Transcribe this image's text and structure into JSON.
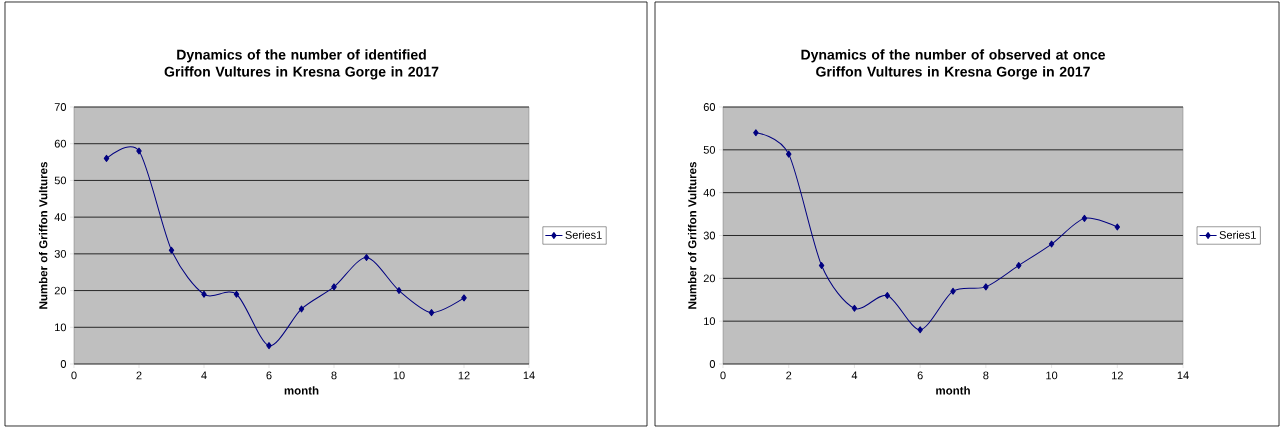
{
  "chart_data": [
    {
      "type": "line",
      "title": "Dynamics of the number of identified Griffon Vultures in Kresna Gorge in 2017",
      "xlabel": "month",
      "ylabel": "Number of Griffon Vultures",
      "x": [
        1,
        2,
        3,
        4,
        5,
        6,
        7,
        8,
        9,
        10,
        11,
        12
      ],
      "series": [
        {
          "name": "Series1",
          "color": "#000080",
          "values": [
            56,
            58,
            31,
            19,
            19,
            5,
            15,
            21,
            29,
            20,
            14,
            18
          ]
        }
      ],
      "xlim": [
        0,
        14
      ],
      "xticks": [
        0,
        2,
        4,
        6,
        8,
        10,
        12,
        14
      ],
      "ylim": [
        0,
        70
      ],
      "yticks": [
        0,
        10,
        20,
        30,
        40,
        50,
        60,
        70
      ],
      "grid": "y",
      "legend": "right",
      "marker": "diamond",
      "line_style": "solid"
    },
    {
      "type": "line",
      "title": "Dynamics of the number of observed at once Griffon Vultures in Kresna Gorge in 2017",
      "xlabel": "month",
      "ylabel": "Number of Griffon Vultures",
      "x": [
        1,
        2,
        3,
        4,
        5,
        6,
        7,
        8,
        9,
        10,
        11,
        12
      ],
      "series": [
        {
          "name": "Series1",
          "color": "#000080",
          "values": [
            54,
            49,
            23,
            13,
            16,
            8,
            17,
            18,
            23,
            28,
            34,
            32
          ]
        }
      ],
      "xlim": [
        0,
        14
      ],
      "xticks": [
        0,
        2,
        4,
        6,
        8,
        10,
        12,
        14
      ],
      "ylim": [
        0,
        60
      ],
      "yticks": [
        0,
        10,
        20,
        30,
        40,
        50,
        60
      ],
      "grid": "y",
      "legend": "right",
      "marker": "diamond",
      "line_style": "solid"
    }
  ]
}
